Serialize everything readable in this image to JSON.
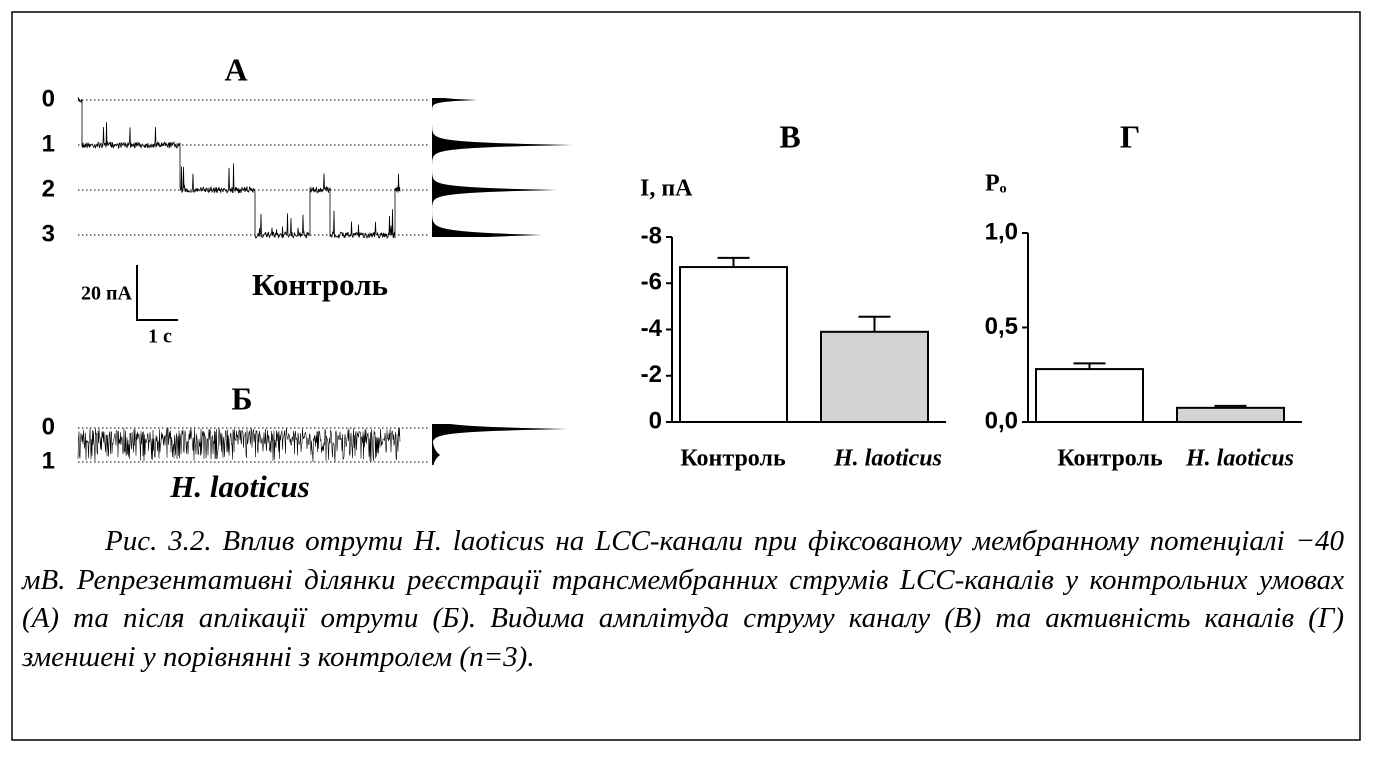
{
  "panels": {
    "a": {
      "title": "А",
      "levels": [
        "0",
        "1",
        "2",
        "3"
      ],
      "scale_y": "20 пА",
      "scale_x": "1 с",
      "label": "Контроль"
    },
    "b": {
      "title": "Б",
      "levels": [
        "0",
        "1"
      ],
      "label": "H. laoticus"
    }
  },
  "chart_data": [
    {
      "type": "bar",
      "title": "В",
      "y_label": "I, пА",
      "categories": [
        "Контроль",
        "H. laoticus"
      ],
      "values": [
        -6.7,
        -3.9
      ],
      "errors": [
        0.4,
        0.65
      ],
      "colors": [
        "#ffffff",
        "#d3d3d3"
      ],
      "ylim": [
        0,
        -8
      ],
      "yticks": [
        0,
        -2,
        -4,
        -6,
        -8
      ]
    },
    {
      "type": "bar",
      "title": "Г",
      "y_label": "Pₒ",
      "categories": [
        "Контроль",
        "H. laoticus"
      ],
      "values": [
        0.28,
        0.075
      ],
      "errors": [
        0.03,
        0.01
      ],
      "colors": [
        "#ffffff",
        "#d3d3d3"
      ],
      "ylim": [
        0,
        1.0
      ],
      "yticks": [
        {
          "value": 0,
          "label": "0,0"
        },
        {
          "value": 0.5,
          "label": "0,5"
        },
        {
          "value": 1.0,
          "label": "1,0"
        }
      ]
    }
  ],
  "caption": "Рис. 3.2. Вплив отрути H. laoticus на LCC-канали при фіксованому мембранному потенціалі −40 мВ. Репрезентативні ділянки реєстрації трансмембранних струмів LCC-каналів у контрольних умовах (А) та після аплікації отрути (Б). Видима амплітуда струму каналу (В) та активність каналів (Г) зменшені у порівнянні з контролем (n=3)."
}
